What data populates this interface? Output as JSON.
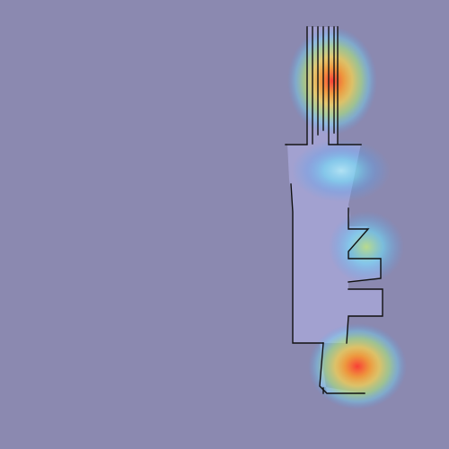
{
  "scene": {
    "background_color": "#8b89b0",
    "map_fill_color": "#a6a6d6",
    "wall_color": "#111111",
    "heatmap_colors": [
      "#ff3b2f",
      "#ff9a2a",
      "#ffd94a",
      "#aef07a",
      "#6de6ff",
      "#4aa6ff"
    ],
    "hotspots": [
      {
        "name": "upper-corridor-hotspot",
        "intensity": 0.85
      },
      {
        "name": "neck-hotspot",
        "intensity": 0.45
      },
      {
        "name": "right-notch-hotspot",
        "intensity": 0.35
      },
      {
        "name": "bottom-hotspot",
        "intensity": 0.95
      }
    ]
  }
}
